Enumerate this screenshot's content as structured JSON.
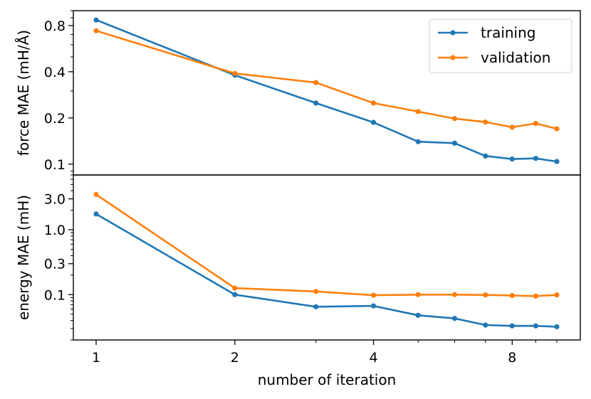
{
  "chart_data": [
    {
      "type": "line",
      "xscale": "log",
      "yscale": "log",
      "ylabel": "force MAE (mH/Å)",
      "ylim": [
        0.085,
        1.0
      ],
      "yticks": [
        0.1,
        0.2,
        0.4,
        0.8
      ],
      "ytick_labels": [
        "0.1",
        "0.2",
        "0.4",
        "0.8"
      ],
      "x": [
        1,
        2,
        3,
        4,
        5,
        6,
        7,
        8,
        9,
        10
      ],
      "series": [
        {
          "name": "training",
          "color": "#1f77b4",
          "values": [
            0.87,
            0.38,
            0.25,
            0.187,
            0.14,
            0.137,
            0.113,
            0.108,
            0.109,
            0.104
          ]
        },
        {
          "name": "validation",
          "color": "#ff7f0e",
          "values": [
            0.74,
            0.39,
            0.34,
            0.25,
            0.22,
            0.198,
            0.188,
            0.174,
            0.184,
            0.17
          ]
        }
      ],
      "legend": {
        "position": "top-right",
        "entries": [
          "training",
          "validation"
        ]
      },
      "grid": false
    },
    {
      "type": "line",
      "xscale": "log",
      "yscale": "log",
      "xlabel": "number of iteration",
      "ylabel": "energy MAE (mH)",
      "ylim": [
        0.02,
        7.0
      ],
      "yticks": [
        0.1,
        0.3,
        1.0,
        3.0
      ],
      "ytick_labels": [
        "0.1",
        "0.3",
        "1.0",
        "3.0"
      ],
      "xticks": [
        1,
        2,
        4,
        8
      ],
      "xtick_labels": [
        "1",
        "2",
        "4",
        "8"
      ],
      "x": [
        1,
        2,
        3,
        4,
        5,
        6,
        7,
        8,
        9,
        10
      ],
      "series": [
        {
          "name": "training",
          "color": "#1f77b4",
          "values": [
            1.75,
            0.1,
            0.065,
            0.067,
            0.048,
            0.043,
            0.034,
            0.033,
            0.033,
            0.032
          ]
        },
        {
          "name": "validation",
          "color": "#ff7f0e",
          "values": [
            3.5,
            0.126,
            0.112,
            0.098,
            0.1,
            0.1,
            0.099,
            0.097,
            0.095,
            0.099
          ]
        }
      ],
      "grid": false
    }
  ]
}
